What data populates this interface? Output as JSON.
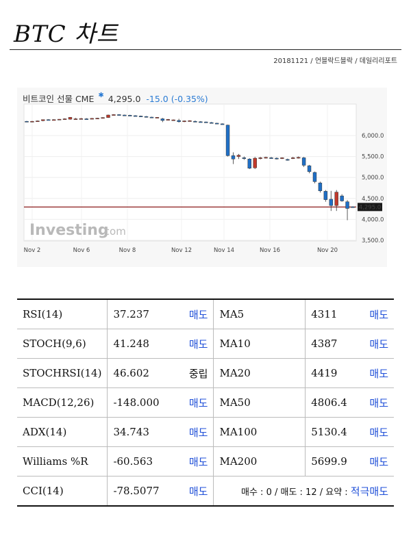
{
  "page": {
    "title": "BTC 차트",
    "subline": "20181121 / 언블락드블락 / 데일리리포트"
  },
  "chart_header": {
    "name": "비트코인 선물 CME",
    "price": "4,295.0",
    "change": "-15.0 (-0.35%)"
  },
  "colors": {
    "up": "#c0392b",
    "down": "#1f6fc6",
    "price_line": "#8b1a1a",
    "sell": "#1f4fd8"
  },
  "chart_data": {
    "type": "candlestick",
    "title": "비트코인 선물 CME",
    "x_ticks": [
      "Nov 2",
      "Nov 6",
      "Nov 8",
      "Nov 12",
      "Nov 14",
      "Nov 16",
      "Nov 20"
    ],
    "y_ticks": [
      "6,000.0",
      "5,500.0",
      "5,000.0",
      "4,500.0",
      "4,000.0",
      "3,500.0"
    ],
    "ylim": [
      3500,
      6500
    ],
    "current_price": 4295.0,
    "current_price_label": "4,295.0",
    "grid": true,
    "candles": [
      {
        "o": 6340,
        "h": 6350,
        "l": 6320,
        "c": 6335
      },
      {
        "o": 6335,
        "h": 6350,
        "l": 6320,
        "c": 6340
      },
      {
        "o": 6340,
        "h": 6360,
        "l": 6330,
        "c": 6350
      },
      {
        "o": 6355,
        "h": 6385,
        "l": 6340,
        "c": 6380
      },
      {
        "o": 6380,
        "h": 6390,
        "l": 6370,
        "c": 6375
      },
      {
        "o": 6375,
        "h": 6390,
        "l": 6365,
        "c": 6380
      },
      {
        "o": 6385,
        "h": 6395,
        "l": 6375,
        "c": 6390
      },
      {
        "o": 6400,
        "h": 6410,
        "l": 6390,
        "c": 6400
      },
      {
        "o": 6390,
        "h": 6440,
        "l": 6380,
        "c": 6435
      },
      {
        "o": 6395,
        "h": 6420,
        "l": 6380,
        "c": 6400
      },
      {
        "o": 6400,
        "h": 6420,
        "l": 6390,
        "c": 6405
      },
      {
        "o": 6400,
        "h": 6415,
        "l": 6390,
        "c": 6395
      },
      {
        "o": 6405,
        "h": 6420,
        "l": 6395,
        "c": 6410
      },
      {
        "o": 6410,
        "h": 6425,
        "l": 6400,
        "c": 6415
      },
      {
        "o": 6420,
        "h": 6440,
        "l": 6405,
        "c": 6430
      },
      {
        "o": 6430,
        "h": 6500,
        "l": 6420,
        "c": 6490
      },
      {
        "o": 6495,
        "h": 6510,
        "l": 6485,
        "c": 6500
      },
      {
        "o": 6500,
        "h": 6510,
        "l": 6490,
        "c": 6495
      },
      {
        "o": 6490,
        "h": 6500,
        "l": 6480,
        "c": 6485
      },
      {
        "o": 6485,
        "h": 6495,
        "l": 6475,
        "c": 6480
      },
      {
        "o": 6475,
        "h": 6485,
        "l": 6465,
        "c": 6470
      },
      {
        "o": 6465,
        "h": 6475,
        "l": 6455,
        "c": 6460
      },
      {
        "o": 6455,
        "h": 6465,
        "l": 6430,
        "c": 6440
      },
      {
        "o": 6440,
        "h": 6450,
        "l": 6420,
        "c": 6425
      },
      {
        "o": 6430,
        "h": 6440,
        "l": 6420,
        "c": 6435
      },
      {
        "o": 6400,
        "h": 6420,
        "l": 6320,
        "c": 6360
      },
      {
        "o": 6380,
        "h": 6395,
        "l": 6360,
        "c": 6385
      },
      {
        "o": 6370,
        "h": 6385,
        "l": 6360,
        "c": 6375
      },
      {
        "o": 6360,
        "h": 6400,
        "l": 6310,
        "c": 6330
      },
      {
        "o": 6330,
        "h": 6360,
        "l": 6320,
        "c": 6350
      },
      {
        "o": 6350,
        "h": 6365,
        "l": 6340,
        "c": 6355
      },
      {
        "o": 6340,
        "h": 6360,
        "l": 6320,
        "c": 6335
      },
      {
        "o": 6330,
        "h": 6345,
        "l": 6315,
        "c": 6325
      },
      {
        "o": 6325,
        "h": 6335,
        "l": 6305,
        "c": 6315
      },
      {
        "o": 6310,
        "h": 6325,
        "l": 6295,
        "c": 6305
      },
      {
        "o": 6295,
        "h": 6305,
        "l": 6280,
        "c": 6290
      },
      {
        "o": 6280,
        "h": 6290,
        "l": 6260,
        "c": 6270
      },
      {
        "o": 6250,
        "h": 6260,
        "l": 5500,
        "c": 5520
      },
      {
        "o": 5520,
        "h": 5600,
        "l": 5320,
        "c": 5440
      },
      {
        "o": 5500,
        "h": 5560,
        "l": 5440,
        "c": 5530
      },
      {
        "o": 5470,
        "h": 5500,
        "l": 5420,
        "c": 5450
      },
      {
        "o": 5440,
        "h": 5460,
        "l": 5200,
        "c": 5220
      },
      {
        "o": 5230,
        "h": 5490,
        "l": 5200,
        "c": 5460
      },
      {
        "o": 5460,
        "h": 5490,
        "l": 5430,
        "c": 5470
      },
      {
        "o": 5475,
        "h": 5495,
        "l": 5450,
        "c": 5480
      },
      {
        "o": 5470,
        "h": 5490,
        "l": 5450,
        "c": 5465
      },
      {
        "o": 5460,
        "h": 5480,
        "l": 5430,
        "c": 5455
      },
      {
        "o": 5460,
        "h": 5480,
        "l": 5440,
        "c": 5470
      },
      {
        "o": 5430,
        "h": 5450,
        "l": 5400,
        "c": 5420
      },
      {
        "o": 5460,
        "h": 5490,
        "l": 5440,
        "c": 5470
      },
      {
        "o": 5470,
        "h": 5500,
        "l": 5450,
        "c": 5480
      },
      {
        "o": 5470,
        "h": 5490,
        "l": 5250,
        "c": 5290
      },
      {
        "o": 5280,
        "h": 5300,
        "l": 5100,
        "c": 5140
      },
      {
        "o": 5120,
        "h": 5140,
        "l": 4860,
        "c": 4900
      },
      {
        "o": 4870,
        "h": 4900,
        "l": 4640,
        "c": 4680
      },
      {
        "o": 4670,
        "h": 4700,
        "l": 4420,
        "c": 4470
      },
      {
        "o": 4480,
        "h": 4680,
        "l": 4200,
        "c": 4330
      },
      {
        "o": 4330,
        "h": 4700,
        "l": 4200,
        "c": 4650
      },
      {
        "o": 4560,
        "h": 4600,
        "l": 4420,
        "c": 4440
      },
      {
        "o": 4420,
        "h": 4460,
        "l": 3980,
        "c": 4260
      },
      {
        "o": 4300,
        "h": 4310,
        "l": 4285,
        "c": 4295
      }
    ]
  },
  "table": {
    "rows": [
      {
        "ind": "RSI(14)",
        "val": "37.237",
        "sig": "매도",
        "sig_type": "sell",
        "ma": "MA5",
        "ma_val": "4311",
        "ma_sig": "매도"
      },
      {
        "ind": "STOCH(9,6)",
        "val": "41.248",
        "sig": "매도",
        "sig_type": "sell",
        "ma": "MA10",
        "ma_val": "4387",
        "ma_sig": "매도"
      },
      {
        "ind": "STOCHRSI(14)",
        "val": "46.602",
        "sig": "중립",
        "sig_type": "neutral",
        "ma": "MA20",
        "ma_val": "4419",
        "ma_sig": "매도"
      },
      {
        "ind": "MACD(12,26)",
        "val": "-148.000",
        "sig": "매도",
        "sig_type": "sell",
        "ma": "MA50",
        "ma_val": "4806.4",
        "ma_sig": "매도"
      },
      {
        "ind": "ADX(14)",
        "val": "34.743",
        "sig": "매도",
        "sig_type": "sell",
        "ma": "MA100",
        "ma_val": "5130.4",
        "ma_sig": "매도"
      },
      {
        "ind": "Williams %R",
        "val": "-60.563",
        "sig": "매도",
        "sig_type": "sell",
        "ma": "MA200",
        "ma_val": "5699.9",
        "ma_sig": "매도"
      }
    ],
    "last": {
      "ind": "CCI(14)",
      "val": "-78.5077",
      "sig": "매도",
      "summary_prefix": "매수 : 0 / 매도 : 12 / 요약 : ",
      "summary_result": "적극매도"
    }
  }
}
